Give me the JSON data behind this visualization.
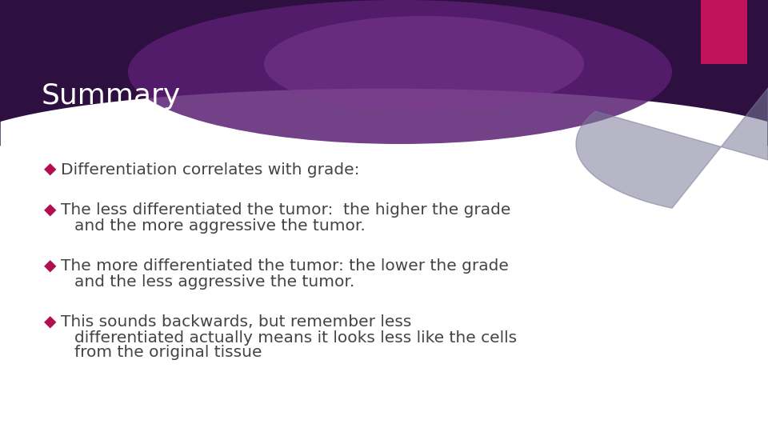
{
  "title": "Summary",
  "title_color": "#ffffff",
  "title_fontsize": 26,
  "background_color": "#ffffff",
  "header_dark_color": "#2d1040",
  "header_mid_color": "#5a1f72",
  "header_light_color": "#7b3a8f",
  "accent_pink": "#c0135a",
  "accent_gray": "#7a7a99",
  "bullet_color": "#b01050",
  "text_color": "#444444",
  "bullet_lines": [
    [
      "Differentiation correlates with grade:"
    ],
    [
      "The less differentiated the tumor:  the higher the grade",
      "and the more aggressive the tumor."
    ],
    [
      "The more differentiated the tumor: the lower the grade",
      "and the less aggressive the tumor."
    ],
    [
      "This sounds backwards, but remember less",
      "differentiated actually means it looks less like the cells",
      "from the original tissue"
    ]
  ],
  "bullet_fontsize": 14.5,
  "figsize": [
    9.6,
    5.4
  ],
  "dpi": 100
}
